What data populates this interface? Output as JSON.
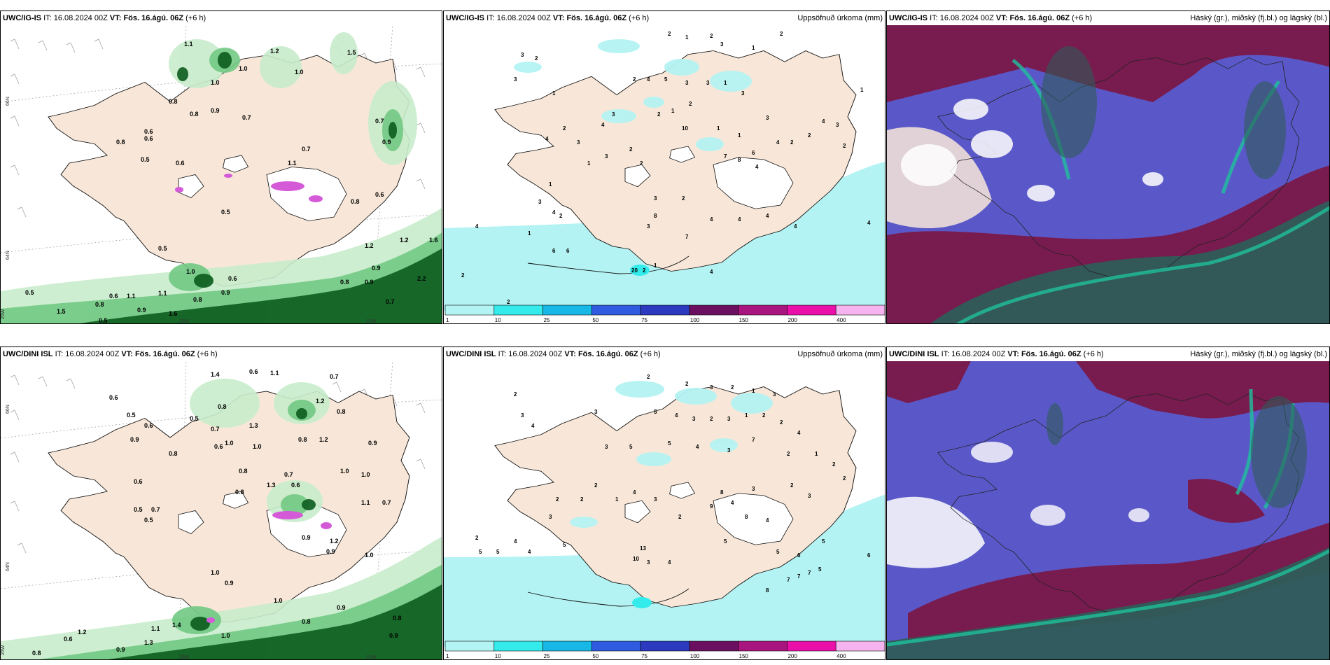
{
  "rows": [
    {
      "model": "UWC/IG-IS",
      "it_label": "IT:",
      "it_value": "16.08.2024 00Z",
      "vt_label": "VT:",
      "vt_value": "Fös. 16.ágú. 06Z",
      "lead": "(+6 h)",
      "precip_title": "Uppsöfnuð úrkoma (mm)",
      "cloud_title": "Háský (gr.), miðský (fj.bl.) og lágský (bl.)",
      "lat_labels": [
        "66N",
        "64N"
      ],
      "lon_labels": [
        "25W",
        "20W",
        "15W"
      ],
      "cloud_values": [
        "1.1",
        "1.2",
        "1.5",
        "1.0",
        "1.0",
        "1.0",
        "0.9",
        "0.8",
        "0.7",
        "0.6",
        "0.5",
        "0.6",
        "0.5",
        "0.8",
        "0.7",
        "1.1",
        "0.7",
        "0.9",
        "0.8",
        "0.6",
        "0.5",
        "0.5",
        "1.2",
        "1.2",
        "1.6",
        "0.9",
        "2.2",
        "0.9",
        "0.8",
        "0.7",
        "0.6",
        "0.5",
        "0.8",
        "0.6",
        "0.9",
        "1.1",
        "1.1",
        "0.9",
        "0.8",
        "1.0",
        "0.6",
        "0.8",
        "1.5",
        "1.6"
      ],
      "precip_values": [
        "2",
        "1",
        "2",
        "3",
        "1",
        "2",
        "3",
        "2",
        "3",
        "1",
        "2",
        "4",
        "5",
        "3",
        "3",
        "1",
        "3",
        "4",
        "3",
        "2",
        "1",
        "2",
        "1",
        "10",
        "1",
        "3",
        "4",
        "3",
        "2",
        "2",
        "2",
        "4",
        "6",
        "7",
        "8",
        "4",
        "2",
        "2",
        "3",
        "1",
        "3",
        "2",
        "4",
        "1",
        "3",
        "2",
        "1",
        "4",
        "6",
        "6",
        "2",
        "4",
        "3",
        "2",
        "3",
        "8",
        "4",
        "7",
        "4",
        "4",
        "4",
        "4",
        "20",
        "2",
        "1",
        "2",
        "4",
        "1"
      ]
    },
    {
      "model": "UWC/DINI ISL",
      "it_label": "IT:",
      "it_value": "16.08.2024 00Z",
      "vt_label": "VT:",
      "vt_value": "Fös. 16.ágú. 06Z",
      "lead": "(+6 h)",
      "precip_title": "Uppsöfnuð úrkoma (mm)",
      "cloud_title": "Háský (gr.), miðský (fj.bl.) og lágský (bl.)",
      "lat_labels": [
        "66N",
        "64N"
      ],
      "lon_labels": [
        "25W",
        "20W",
        "15W"
      ],
      "cloud_values": [
        "1.4",
        "0.6",
        "1.1",
        "0.7",
        "0.6",
        "0.5",
        "0.6",
        "0.9",
        "0.5",
        "0.8",
        "1.2",
        "0.8",
        "0.7",
        "1.2",
        "1.3",
        "0.8",
        "0.6",
        "1.0",
        "1.0",
        "0.8",
        "0.9",
        "1.0",
        "0.8",
        "0.7",
        "0.6",
        "1.3",
        "0.8",
        "0.6",
        "1.0",
        "1.1",
        "0.7",
        "0.5",
        "0.7",
        "0.5",
        "1.2",
        "0.9",
        "0.9",
        "1.0",
        "1.0",
        "0.9",
        "0.8",
        "0.9",
        "1.0",
        "0.8",
        "0.9",
        "1.3",
        "1.4",
        "0.9",
        "1.0",
        "1.2",
        "1.1",
        "0.8",
        "0.6"
      ],
      "precip_values": [
        "2",
        "2",
        "3",
        "2",
        "1",
        "3",
        "2",
        "3",
        "4",
        "3",
        "5",
        "4",
        "3",
        "2",
        "3",
        "1",
        "2",
        "2",
        "4",
        "3",
        "5",
        "5",
        "4",
        "3",
        "7",
        "2",
        "1",
        "2",
        "2",
        "2",
        "3",
        "3",
        "4",
        "8",
        "9",
        "8",
        "4",
        "2",
        "3",
        "4",
        "1",
        "2",
        "2",
        "2",
        "3",
        "4",
        "4",
        "5",
        "5",
        "13",
        "10",
        "3",
        "4",
        "5",
        "2",
        "5",
        "8",
        "7",
        "7",
        "7",
        "5",
        "6",
        "5",
        "5",
        "6"
      ]
    }
  ],
  "precip_scale": {
    "ticks": [
      "1",
      "10",
      "25",
      "50",
      "75",
      "100",
      "150",
      "200",
      "400"
    ],
    "colors": [
      "#b3f5f5",
      "#33ebeb",
      "#18b8e6",
      "#2f5be0",
      "#2c3ac0",
      "#6b1060",
      "#a8157e",
      "#ea0fa8",
      "#f5b3f0"
    ]
  },
  "palette": {
    "land": "#f8e7d8",
    "sea": "#ffffff",
    "cloud_green_light": "#c8eccb",
    "cloud_green_mid": "#72c984",
    "cloud_green_dark": "#0c5c1e",
    "precip_cyan": "#b4f3f3",
    "high_cloud_teal": "#2f5c58",
    "mid_cloud_maroon": "#7a1848",
    "low_cloud_blue": "#5a58c8",
    "cloud_bright": "#1ec29b",
    "orography_magenta": "#d45ad8"
  }
}
